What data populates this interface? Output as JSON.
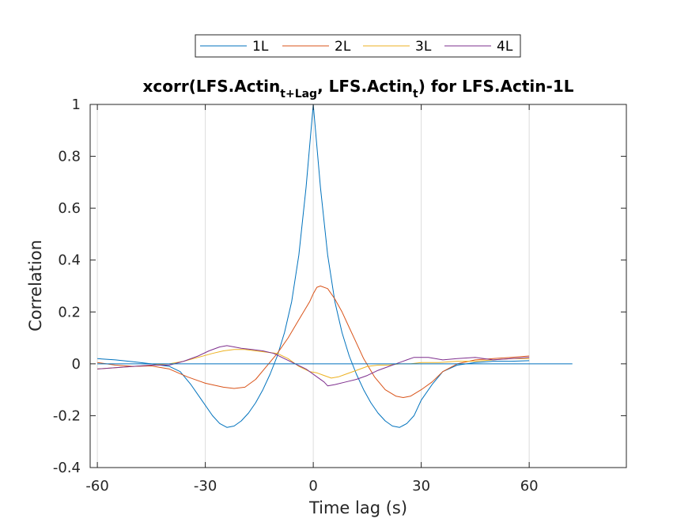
{
  "chart_data": {
    "type": "line",
    "title": {
      "prefix": "xcorr(LFS.Actin",
      "sub1": "t+Lag",
      "middle": ", LFS.Actin",
      "sub2": "t",
      "suffix": ") for LFS.Actin-1L"
    },
    "xlabel": "Time lag (s)",
    "ylabel": "Correlation",
    "xlim": [
      -62,
      87
    ],
    "ylim": [
      -0.4,
      1
    ],
    "xticks": [
      -60,
      -30,
      0,
      30,
      60
    ],
    "xtick_labels": [
      "-60",
      "-30",
      "0",
      "30",
      "60"
    ],
    "yticks": [
      -0.4,
      -0.2,
      0,
      0.2,
      0.4,
      0.6,
      0.8,
      1
    ],
    "ytick_labels": [
      "-0.4",
      "-0.2",
      "0",
      "0.2",
      "0.4",
      "0.6",
      "0.8",
      "1"
    ],
    "grid": {
      "x": true,
      "y": false
    },
    "legend": {
      "placement": "top-outside",
      "orientation": "horizontal"
    },
    "reference_line": {
      "y": 0,
      "x_range": [
        -60,
        72
      ],
      "color": "#0072BD"
    },
    "series": [
      {
        "name": "1L",
        "color": "#0072BD",
        "x": [
          -60,
          -55,
          -50,
          -45,
          -40,
          -37,
          -34,
          -31,
          -28,
          -26,
          -24,
          -22,
          -20,
          -18,
          -16,
          -14,
          -12,
          -10,
          -8,
          -6,
          -4,
          -2,
          0,
          2,
          4,
          6,
          8,
          10,
          12,
          14,
          16,
          18,
          20,
          22,
          24,
          26,
          28,
          30,
          33,
          36,
          40,
          45,
          50,
          55,
          60
        ],
        "y": [
          0.02,
          0.015,
          0.008,
          0.0,
          -0.01,
          -0.03,
          -0.08,
          -0.14,
          -0.2,
          -0.23,
          -0.245,
          -0.24,
          -0.22,
          -0.19,
          -0.15,
          -0.1,
          -0.04,
          0.03,
          0.12,
          0.24,
          0.42,
          0.68,
          1.0,
          0.68,
          0.42,
          0.24,
          0.12,
          0.03,
          -0.04,
          -0.1,
          -0.15,
          -0.19,
          -0.22,
          -0.24,
          -0.245,
          -0.23,
          -0.2,
          -0.14,
          -0.08,
          -0.03,
          -0.005,
          0.005,
          0.01,
          0.01,
          0.012
        ]
      },
      {
        "name": "2L",
        "color": "#D95319",
        "x": [
          -60,
          -55,
          -50,
          -45,
          -40,
          -35,
          -30,
          -25,
          -22,
          -19,
          -16,
          -13,
          -10,
          -7,
          -4,
          -1,
          0,
          1,
          2,
          4,
          6,
          8,
          10,
          12,
          14,
          17,
          20,
          23,
          25,
          27,
          30,
          33,
          36,
          40,
          45,
          50,
          55,
          60
        ],
        "y": [
          0.005,
          -0.005,
          -0.01,
          -0.008,
          -0.02,
          -0.05,
          -0.075,
          -0.09,
          -0.095,
          -0.09,
          -0.06,
          -0.01,
          0.04,
          0.1,
          0.17,
          0.24,
          0.27,
          0.295,
          0.3,
          0.29,
          0.25,
          0.2,
          0.14,
          0.08,
          0.02,
          -0.05,
          -0.1,
          -0.125,
          -0.13,
          -0.125,
          -0.1,
          -0.07,
          -0.03,
          0.0,
          0.015,
          0.02,
          0.025,
          0.03
        ]
      },
      {
        "name": "3L",
        "color": "#EDB120",
        "x": [
          -60,
          -55,
          -50,
          -45,
          -40,
          -36,
          -32,
          -28,
          -25,
          -22,
          -19,
          -16,
          -13,
          -10,
          -7,
          -4,
          -1,
          1,
          3,
          5,
          7,
          9,
          12,
          15,
          18,
          21,
          24,
          27,
          30,
          35,
          40,
          45,
          50,
          55,
          60
        ],
        "y": [
          -0.02,
          -0.015,
          -0.01,
          -0.005,
          0.0,
          0.01,
          0.025,
          0.04,
          0.05,
          0.055,
          0.055,
          0.05,
          0.045,
          0.04,
          0.02,
          -0.01,
          -0.03,
          -0.035,
          -0.045,
          -0.055,
          -0.05,
          -0.04,
          -0.025,
          -0.01,
          -0.005,
          -0.005,
          0.0,
          0.0,
          0.005,
          0.005,
          0.01,
          0.01,
          0.015,
          0.02,
          0.02
        ]
      },
      {
        "name": "4L",
        "color": "#7E2F8E",
        "x": [
          -60,
          -55,
          -50,
          -45,
          -40,
          -36,
          -32,
          -29,
          -26,
          -24,
          -22,
          -20,
          -17,
          -14,
          -11,
          -8,
          -5,
          -2,
          1,
          3,
          4,
          6,
          9,
          12,
          15,
          18,
          21,
          24,
          26,
          28,
          32,
          36,
          40,
          45,
          50,
          55,
          60
        ],
        "y": [
          -0.02,
          -0.015,
          -0.01,
          -0.005,
          -0.005,
          0.01,
          0.03,
          0.05,
          0.065,
          0.07,
          0.065,
          0.06,
          0.055,
          0.05,
          0.04,
          0.02,
          0.0,
          -0.02,
          -0.05,
          -0.07,
          -0.085,
          -0.08,
          -0.07,
          -0.06,
          -0.045,
          -0.025,
          -0.01,
          0.005,
          0.015,
          0.025,
          0.025,
          0.015,
          0.02,
          0.025,
          0.015,
          0.02,
          0.025
        ]
      }
    ]
  }
}
